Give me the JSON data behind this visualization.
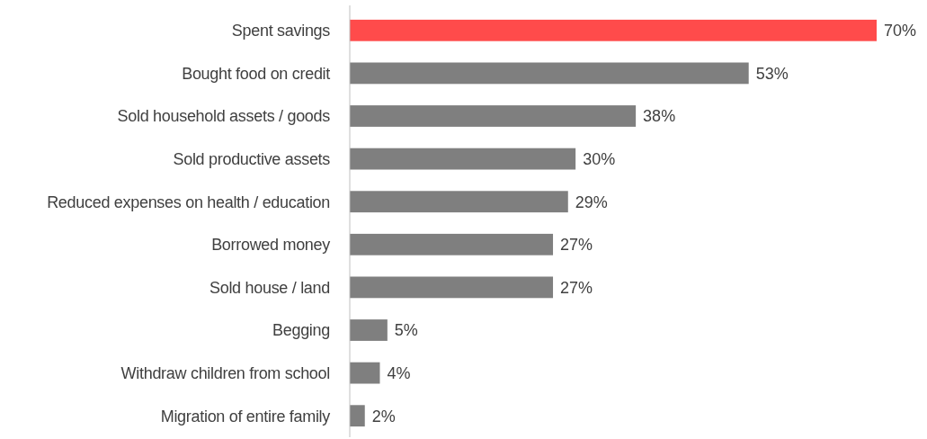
{
  "chart_data": {
    "type": "bar",
    "orientation": "horizontal",
    "categories": [
      "Spent savings",
      "Bought food on credit",
      "Sold household assets / goods",
      "Sold productive assets",
      "Reduced expenses on health / education",
      "Borrowed money",
      "Sold house / land",
      "Begging",
      "Withdraw children from school",
      "Migration of entire family"
    ],
    "values": [
      70,
      53,
      38,
      30,
      29,
      27,
      27,
      5,
      4,
      2
    ],
    "colors": [
      "#ff4b4b",
      "#7f7f7f",
      "#7f7f7f",
      "#7f7f7f",
      "#7f7f7f",
      "#7f7f7f",
      "#7f7f7f",
      "#7f7f7f",
      "#7f7f7f",
      "#7f7f7f"
    ],
    "value_labels": [
      "70%",
      "53%",
      "38%",
      "30%",
      "29%",
      "27%",
      "27%",
      "5%",
      "4%",
      "2%"
    ]
  }
}
